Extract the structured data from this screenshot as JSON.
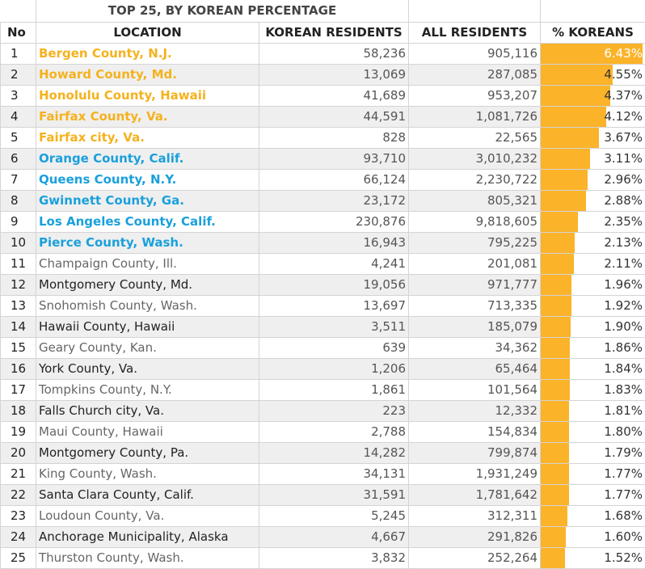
{
  "title": "TOP 25, BY KOREAN PERCENTAGE",
  "columns": [
    "No",
    "LOCATION",
    "KOREAN RESIDENTS",
    "ALL RESIDENTS",
    "% KOREANS"
  ],
  "bar_color": "#fbb32a",
  "colors": {
    "orange": "#f5b21e",
    "blue": "#1aa0dc"
  },
  "rows": [
    {
      "no": "1",
      "location": "Bergen County, N.J.",
      "korean": "58,236",
      "all": "905,116",
      "pct": "6.43%",
      "pct_value": 6.43,
      "style": "orange"
    },
    {
      "no": "2",
      "location": "Howard County, Md.",
      "korean": "13,069",
      "all": "287,085",
      "pct": "4.55%",
      "pct_value": 4.55,
      "style": "orange"
    },
    {
      "no": "3",
      "location": "Honolulu County, Hawaii",
      "korean": "41,689",
      "all": "953,207",
      "pct": "4.37%",
      "pct_value": 4.37,
      "style": "orange"
    },
    {
      "no": "4",
      "location": "Fairfax County, Va.",
      "korean": "44,591",
      "all": "1,081,726",
      "pct": "4.12%",
      "pct_value": 4.12,
      "style": "orange"
    },
    {
      "no": "5",
      "location": "Fairfax city, Va.",
      "korean": "828",
      "all": "22,565",
      "pct": "3.67%",
      "pct_value": 3.67,
      "style": "orange"
    },
    {
      "no": "6",
      "location": "Orange County, Calif.",
      "korean": "93,710",
      "all": "3,010,232",
      "pct": "3.11%",
      "pct_value": 3.11,
      "style": "blue"
    },
    {
      "no": "7",
      "location": "Queens County, N.Y.",
      "korean": "66,124",
      "all": "2,230,722",
      "pct": "2.96%",
      "pct_value": 2.96,
      "style": "blue"
    },
    {
      "no": "8",
      "location": "Gwinnett County, Ga.",
      "korean": "23,172",
      "all": "805,321",
      "pct": "2.88%",
      "pct_value": 2.88,
      "style": "blue"
    },
    {
      "no": "9",
      "location": "Los Angeles County, Calif.",
      "korean": "230,876",
      "all": "9,818,605",
      "pct": "2.35%",
      "pct_value": 2.35,
      "style": "blue"
    },
    {
      "no": "10",
      "location": "Pierce County, Wash.",
      "korean": "16,943",
      "all": "795,225",
      "pct": "2.13%",
      "pct_value": 2.13,
      "style": "blue"
    },
    {
      "no": "11",
      "location": "Champaign County, Ill.",
      "korean": "4,241",
      "all": "201,081",
      "pct": "2.11%",
      "pct_value": 2.11,
      "style": "gray"
    },
    {
      "no": "12",
      "location": "Montgomery County, Md.",
      "korean": "19,056",
      "all": "971,777",
      "pct": "1.96%",
      "pct_value": 1.96,
      "style": "black"
    },
    {
      "no": "13",
      "location": "Snohomish County, Wash.",
      "korean": "13,697",
      "all": "713,335",
      "pct": "1.92%",
      "pct_value": 1.92,
      "style": "gray"
    },
    {
      "no": "14",
      "location": "Hawaii County, Hawaii",
      "korean": "3,511",
      "all": "185,079",
      "pct": "1.90%",
      "pct_value": 1.9,
      "style": "black"
    },
    {
      "no": "15",
      "location": "Geary County, Kan.",
      "korean": "639",
      "all": "34,362",
      "pct": "1.86%",
      "pct_value": 1.86,
      "style": "gray"
    },
    {
      "no": "16",
      "location": "York County, Va.",
      "korean": "1,206",
      "all": "65,464",
      "pct": "1.84%",
      "pct_value": 1.84,
      "style": "black"
    },
    {
      "no": "17",
      "location": "Tompkins County, N.Y.",
      "korean": "1,861",
      "all": "101,564",
      "pct": "1.83%",
      "pct_value": 1.83,
      "style": "gray"
    },
    {
      "no": "18",
      "location": "Falls Church city, Va.",
      "korean": "223",
      "all": "12,332",
      "pct": "1.81%",
      "pct_value": 1.81,
      "style": "black"
    },
    {
      "no": "19",
      "location": "Maui County, Hawaii",
      "korean": "2,788",
      "all": "154,834",
      "pct": "1.80%",
      "pct_value": 1.8,
      "style": "gray"
    },
    {
      "no": "20",
      "location": "Montgomery County, Pa.",
      "korean": "14,282",
      "all": "799,874",
      "pct": "1.79%",
      "pct_value": 1.79,
      "style": "black"
    },
    {
      "no": "21",
      "location": "King County, Wash.",
      "korean": "34,131",
      "all": "1,931,249",
      "pct": "1.77%",
      "pct_value": 1.77,
      "style": "gray"
    },
    {
      "no": "22",
      "location": "Santa Clara County, Calif.",
      "korean": "31,591",
      "all": "1,781,642",
      "pct": "1.77%",
      "pct_value": 1.77,
      "style": "black"
    },
    {
      "no": "23",
      "location": "Loudoun County, Va.",
      "korean": "5,245",
      "all": "312,311",
      "pct": "1.68%",
      "pct_value": 1.68,
      "style": "gray"
    },
    {
      "no": "24",
      "location": "Anchorage Municipality, Alaska",
      "korean": "4,667",
      "all": "291,826",
      "pct": "1.60%",
      "pct_value": 1.6,
      "style": "black"
    },
    {
      "no": "25",
      "location": "Thurston County, Wash.",
      "korean": "3,832",
      "all": "252,264",
      "pct": "1.52%",
      "pct_value": 1.52,
      "style": "gray"
    }
  ]
}
